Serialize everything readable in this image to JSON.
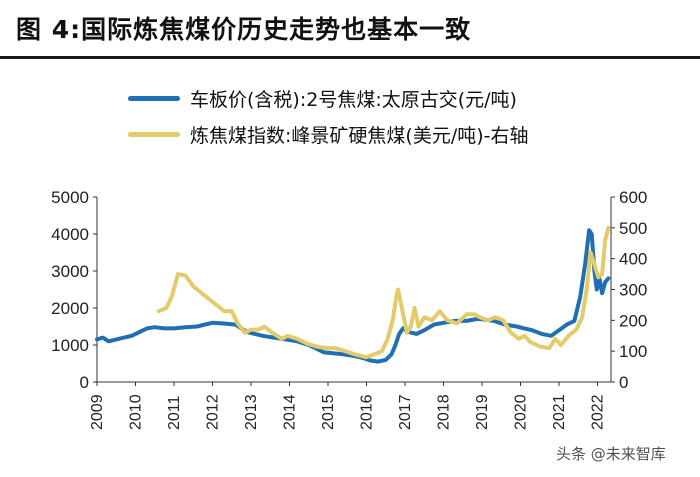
{
  "figure": {
    "title": "图 4:国际炼焦煤价历史走势也基本一致"
  },
  "watermark": "头条 @未来智库",
  "chart_data": {
    "type": "line",
    "x_ticks": [
      "2009",
      "2010",
      "2011",
      "2012",
      "2013",
      "2014",
      "2015",
      "2016",
      "2017",
      "2018",
      "2019",
      "2020",
      "2021",
      "2022"
    ],
    "y_left": {
      "ticks": [
        0,
        1000,
        2000,
        3000,
        4000,
        5000
      ],
      "ylim": [
        0,
        5000
      ]
    },
    "y_right": {
      "ticks": [
        0,
        100,
        200,
        300,
        400,
        500,
        600
      ],
      "ylim": [
        0,
        600
      ]
    },
    "legend_placement": "top-left",
    "grid": false,
    "series": [
      {
        "name": "车板价(含税):2号焦煤:太原古交(元/吨)",
        "axis": "left",
        "color": "#1f6fb2",
        "points": [
          [
            2009.0,
            1150
          ],
          [
            2009.15,
            1200
          ],
          [
            2009.3,
            1100
          ],
          [
            2009.5,
            1150
          ],
          [
            2009.7,
            1200
          ],
          [
            2009.9,
            1250
          ],
          [
            2010.1,
            1350
          ],
          [
            2010.3,
            1450
          ],
          [
            2010.5,
            1480
          ],
          [
            2010.75,
            1450
          ],
          [
            2011.0,
            1450
          ],
          [
            2011.3,
            1480
          ],
          [
            2011.6,
            1500
          ],
          [
            2011.8,
            1550
          ],
          [
            2012.0,
            1600
          ],
          [
            2012.3,
            1580
          ],
          [
            2012.6,
            1550
          ],
          [
            2012.75,
            1450
          ],
          [
            2012.9,
            1350
          ],
          [
            2013.1,
            1300
          ],
          [
            2013.3,
            1250
          ],
          [
            2013.6,
            1200
          ],
          [
            2013.9,
            1150
          ],
          [
            2014.2,
            1100
          ],
          [
            2014.5,
            1000
          ],
          [
            2014.7,
            900
          ],
          [
            2014.9,
            800
          ],
          [
            2015.1,
            780
          ],
          [
            2015.4,
            750
          ],
          [
            2015.7,
            700
          ],
          [
            2015.9,
            650
          ],
          [
            2016.1,
            580
          ],
          [
            2016.3,
            550
          ],
          [
            2016.5,
            600
          ],
          [
            2016.65,
            750
          ],
          [
            2016.75,
            1000
          ],
          [
            2016.85,
            1300
          ],
          [
            2016.95,
            1450
          ],
          [
            2017.1,
            1350
          ],
          [
            2017.3,
            1300
          ],
          [
            2017.5,
            1400
          ],
          [
            2017.75,
            1550
          ],
          [
            2018.0,
            1600
          ],
          [
            2018.3,
            1650
          ],
          [
            2018.6,
            1650
          ],
          [
            2018.85,
            1700
          ],
          [
            2019.0,
            1700
          ],
          [
            2019.3,
            1650
          ],
          [
            2019.6,
            1550
          ],
          [
            2019.9,
            1500
          ],
          [
            2020.1,
            1450
          ],
          [
            2020.3,
            1400
          ],
          [
            2020.55,
            1300
          ],
          [
            2020.8,
            1250
          ],
          [
            2021.0,
            1400
          ],
          [
            2021.2,
            1550
          ],
          [
            2021.4,
            1650
          ],
          [
            2021.55,
            2300
          ],
          [
            2021.68,
            3200
          ],
          [
            2021.78,
            4100
          ],
          [
            2021.85,
            4000
          ],
          [
            2021.92,
            3000
          ],
          [
            2021.98,
            2500
          ],
          [
            2022.05,
            2800
          ],
          [
            2022.12,
            2400
          ],
          [
            2022.2,
            2700
          ],
          [
            2022.28,
            2800
          ]
        ]
      },
      {
        "name": "炼焦煤指数:峰景矿硬焦煤(美元/吨)-右轴",
        "axis": "right",
        "color": "#e3cb6b",
        "points": [
          [
            2010.6,
            230
          ],
          [
            2010.8,
            240
          ],
          [
            2010.95,
            280
          ],
          [
            2011.1,
            350
          ],
          [
            2011.3,
            345
          ],
          [
            2011.5,
            310
          ],
          [
            2011.7,
            290
          ],
          [
            2011.9,
            270
          ],
          [
            2012.1,
            250
          ],
          [
            2012.3,
            230
          ],
          [
            2012.5,
            230
          ],
          [
            2012.65,
            190
          ],
          [
            2012.85,
            160
          ],
          [
            2013.0,
            170
          ],
          [
            2013.2,
            170
          ],
          [
            2013.35,
            180
          ],
          [
            2013.55,
            160
          ],
          [
            2013.8,
            140
          ],
          [
            2013.95,
            150
          ],
          [
            2014.2,
            140
          ],
          [
            2014.45,
            125
          ],
          [
            2014.7,
            115
          ],
          [
            2014.95,
            110
          ],
          [
            2015.2,
            110
          ],
          [
            2015.45,
            100
          ],
          [
            2015.7,
            90
          ],
          [
            2016.0,
            80
          ],
          [
            2016.2,
            90
          ],
          [
            2016.4,
            100
          ],
          [
            2016.55,
            140
          ],
          [
            2016.68,
            200
          ],
          [
            2016.78,
            280
          ],
          [
            2016.82,
            300
          ],
          [
            2016.9,
            250
          ],
          [
            2017.05,
            160
          ],
          [
            2017.15,
            180
          ],
          [
            2017.25,
            240
          ],
          [
            2017.35,
            180
          ],
          [
            2017.5,
            210
          ],
          [
            2017.7,
            200
          ],
          [
            2017.9,
            230
          ],
          [
            2018.1,
            200
          ],
          [
            2018.35,
            190
          ],
          [
            2018.6,
            220
          ],
          [
            2018.8,
            220
          ],
          [
            2018.95,
            210
          ],
          [
            2019.15,
            200
          ],
          [
            2019.35,
            210
          ],
          [
            2019.55,
            200
          ],
          [
            2019.75,
            160
          ],
          [
            2019.95,
            140
          ],
          [
            2020.1,
            150
          ],
          [
            2020.25,
            130
          ],
          [
            2020.5,
            115
          ],
          [
            2020.75,
            110
          ],
          [
            2020.9,
            140
          ],
          [
            2021.05,
            120
          ],
          [
            2021.25,
            150
          ],
          [
            2021.45,
            170
          ],
          [
            2021.6,
            210
          ],
          [
            2021.72,
            300
          ],
          [
            2021.82,
            420
          ],
          [
            2021.92,
            380
          ],
          [
            2022.02,
            340
          ],
          [
            2022.12,
            350
          ],
          [
            2022.2,
            460
          ],
          [
            2022.28,
            500
          ]
        ]
      }
    ]
  }
}
